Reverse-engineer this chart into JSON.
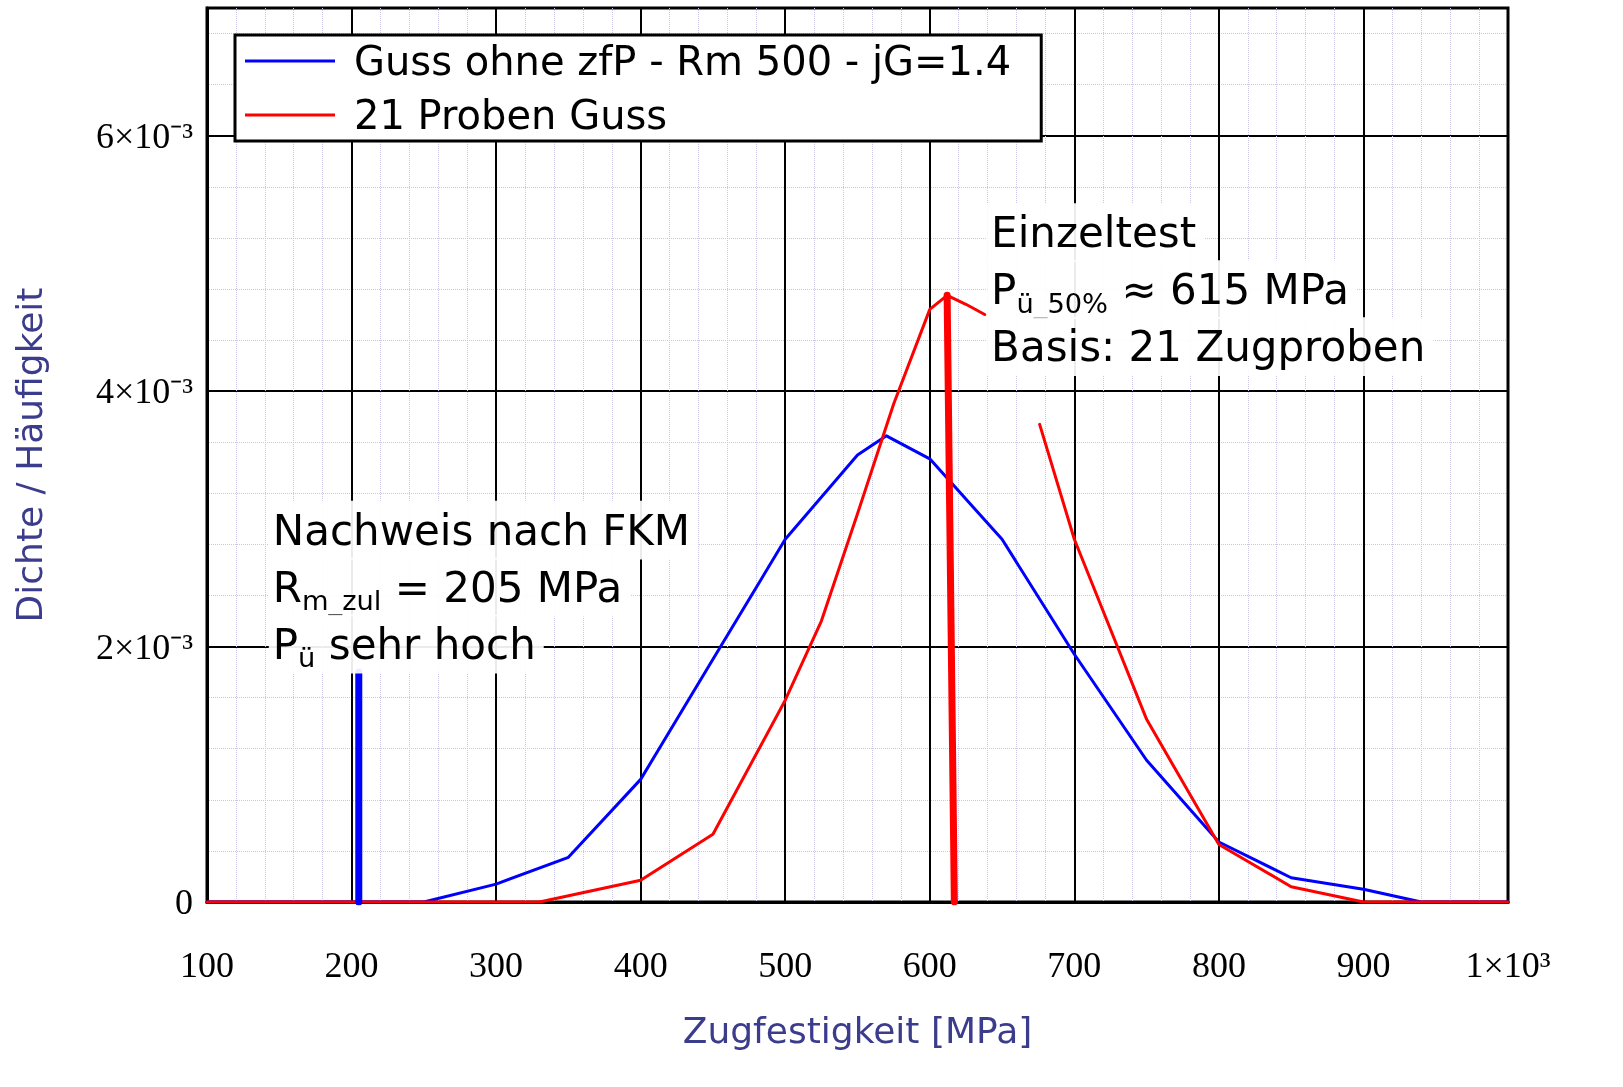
{
  "chart_data": {
    "type": "line",
    "xlabel": "Zugfestigkeit [MPa]",
    "ylabel": "Dichte / Häufigkeit",
    "xlim": [
      100,
      1000
    ],
    "ylim": [
      0,
      0.007
    ],
    "xticks": [
      100,
      200,
      300,
      400,
      500,
      600,
      700,
      800,
      900,
      {
        "value": 1000,
        "label": "1×10³"
      }
    ],
    "yticks": [
      0,
      {
        "value": 0.002,
        "label": "2×10⁻³"
      },
      {
        "value": 0.004,
        "label": "4×10⁻³"
      },
      {
        "value": 0.006,
        "label": "6×10⁻³"
      }
    ],
    "grid": true,
    "legend": "top left",
    "series": [
      {
        "name": "Guss ohne zfP - Rm 500 - jG=1.4",
        "color": "#0000ff",
        "x": [
          100,
          205,
          205,
          250,
          300,
          350,
          400,
          450,
          500,
          550,
          570,
          600,
          650,
          700,
          750,
          800,
          850,
          900,
          940,
          940,
          1000
        ],
        "values": [
          0,
          0,
          0,
          0,
          0.00014,
          0.00035,
          0.00096,
          0.0019,
          0.00284,
          0.0035,
          0.00365,
          0.00347,
          0.00284,
          0.00194,
          0.00111,
          0.00047,
          0.00019,
          0.0001,
          0,
          0,
          0
        ]
      },
      {
        "name": "21 Proben Guss",
        "color": "#ff0000",
        "x": [
          100,
          330,
          400,
          450,
          500,
          525,
          550,
          575,
          600,
          612,
          625,
          638,
          650,
          676,
          700,
          750,
          800,
          850,
          900,
          950,
          1000
        ],
        "values": [
          0,
          0,
          0.00017,
          0.00053,
          0.00158,
          0.0022,
          0.00304,
          0.0039,
          0.00464,
          0.00475,
          0.00468,
          0.0046,
          null,
          0.00374,
          0.00284,
          0.00143,
          0.00045,
          0.00012,
          0,
          0,
          0
        ]
      },
      {
        "color": "#0000ff",
        "x": [
          205,
          205
        ],
        "values": [
          0,
          0.0018
        ]
      },
      {
        "color": "#ff0000",
        "x": [
          617,
          612
        ],
        "values": [
          0,
          0.00475
        ]
      }
    ],
    "annotations": [
      "Einzeltest",
      "P$_{ü_50%}$ ≈ 615 MPa",
      "Basis: 21 Zugproben",
      "Nachweis nach FKM",
      "R$_{m_zul}$ = 205 MPa",
      "P$_{ü}$ sehr hoch"
    ]
  }
}
